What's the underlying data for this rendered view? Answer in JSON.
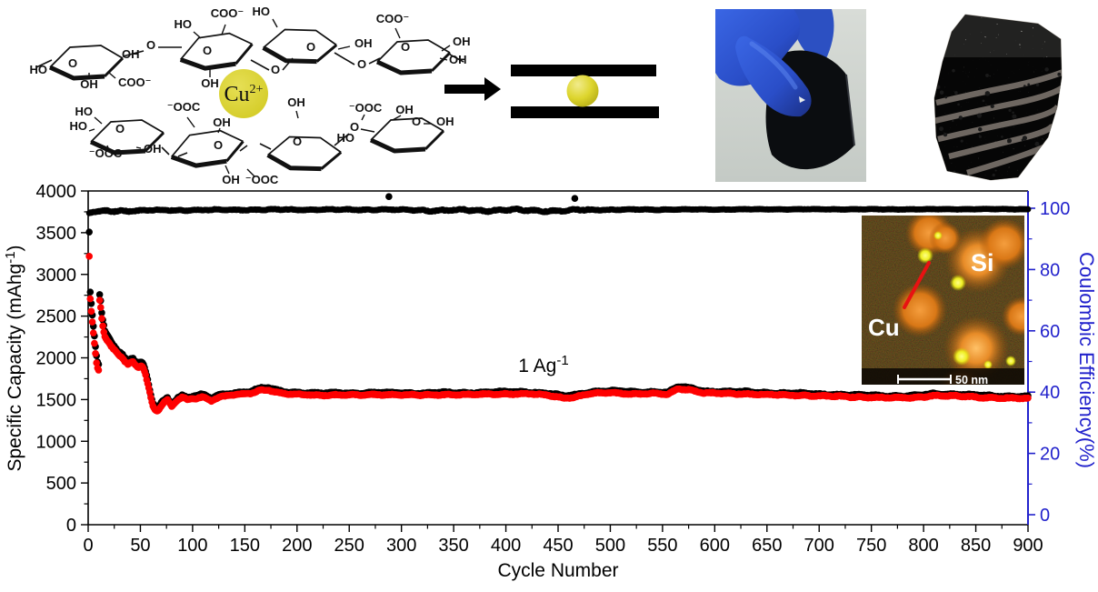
{
  "molecule": {
    "ion_base": "Cu",
    "ion_sup": "2+",
    "ion_color": "#d6ce28",
    "labels": {
      "oh": "OH",
      "ho": "HO",
      "coo": "COO⁻",
      "ooc": "⁻OOC",
      "o": "O"
    }
  },
  "inset": {
    "si_label": "Si",
    "cu_label": "Cu",
    "scale_label": "50 nm",
    "si_color": "#e07a18",
    "cu_color": "#f0ee20",
    "pointer_color": "#e81212"
  },
  "chart_data": {
    "type": "scatter",
    "xlabel": "Cycle Number",
    "ylabel_left_pre": "Specific Capacity (mAhg",
    "ylabel_left_sup": "-1",
    "ylabel_left_post": ")",
    "ylabel_right": "Coulombic Efficiency(%)",
    "annotation_pre": "1 Ag",
    "annotation_sup": "-1",
    "x_range": [
      0,
      900
    ],
    "x_ticks": [
      0,
      50,
      100,
      150,
      200,
      250,
      300,
      350,
      400,
      450,
      500,
      550,
      600,
      650,
      700,
      750,
      800,
      850,
      900
    ],
    "x_minor_step": 25,
    "y_left_range": [
      0,
      4000
    ],
    "y_left_ticks": [
      0,
      500,
      1000,
      1500,
      2000,
      2500,
      3000,
      3500,
      4000
    ],
    "y_left_minor_step": 250,
    "y_right_ticks": [
      0,
      20,
      40,
      60,
      80,
      100
    ],
    "y_right_minor_step": 10,
    "right_axis_color": "#2222cc",
    "grid": false,
    "legend": "none",
    "series": [
      {
        "name": "charge-capacity",
        "color": "#000000",
        "axis": "left",
        "anchors": [
          [
            1,
            3500
          ],
          [
            2,
            2780
          ],
          [
            3,
            2640
          ],
          [
            4,
            2510
          ],
          [
            5,
            2380
          ],
          [
            6,
            2260
          ],
          [
            7,
            2140
          ],
          [
            8,
            2030
          ],
          [
            9,
            1955
          ],
          [
            10,
            1935
          ],
          [
            11,
            2775
          ],
          [
            12,
            2695
          ],
          [
            13,
            2555
          ],
          [
            14,
            2462
          ],
          [
            15,
            2390
          ],
          [
            16,
            2328
          ],
          [
            17,
            2296
          ],
          [
            18,
            2274
          ],
          [
            20,
            2242
          ],
          [
            22,
            2190
          ],
          [
            25,
            2145
          ],
          [
            28,
            2102
          ],
          [
            30,
            2080
          ],
          [
            33,
            2038
          ],
          [
            35,
            1996
          ],
          [
            38,
            1955
          ],
          [
            40,
            1974
          ],
          [
            43,
            1992
          ],
          [
            45,
            1961
          ],
          [
            48,
            1930
          ],
          [
            50,
            1949
          ],
          [
            52,
            1938
          ],
          [
            54,
            1877
          ],
          [
            56,
            1776
          ],
          [
            58,
            1675
          ],
          [
            60,
            1554
          ],
          [
            62,
            1463
          ],
          [
            64,
            1422
          ],
          [
            66,
            1402
          ],
          [
            68,
            1421
          ],
          [
            70,
            1461
          ],
          [
            73,
            1500
          ],
          [
            76,
            1519
          ],
          [
            78,
            1479
          ],
          [
            80,
            1449
          ],
          [
            83,
            1489
          ],
          [
            86,
            1529
          ],
          [
            90,
            1549
          ],
          [
            95,
            1519
          ],
          [
            100,
            1538
          ],
          [
            110,
            1556
          ],
          [
            118,
            1516
          ],
          [
            125,
            1556
          ],
          [
            135,
            1575
          ],
          [
            145,
            1585
          ],
          [
            155,
            1595
          ],
          [
            165,
            1634
          ],
          [
            172,
            1644
          ],
          [
            180,
            1614
          ],
          [
            190,
            1594
          ],
          [
            200,
            1584
          ],
          [
            220,
            1574
          ],
          [
            240,
            1584
          ],
          [
            260,
            1574
          ],
          [
            280,
            1584
          ],
          [
            300,
            1584
          ],
          [
            320,
            1574
          ],
          [
            340,
            1584
          ],
          [
            360,
            1584
          ],
          [
            380,
            1584
          ],
          [
            400,
            1594
          ],
          [
            420,
            1594
          ],
          [
            440,
            1574
          ],
          [
            455,
            1544
          ],
          [
            465,
            1554
          ],
          [
            480,
            1594
          ],
          [
            500,
            1604
          ],
          [
            520,
            1594
          ],
          [
            540,
            1594
          ],
          [
            555,
            1584
          ],
          [
            565,
            1652
          ],
          [
            575,
            1642
          ],
          [
            590,
            1603
          ],
          [
            610,
            1593
          ],
          [
            630,
            1593
          ],
          [
            650,
            1583
          ],
          [
            670,
            1573
          ],
          [
            690,
            1573
          ],
          [
            710,
            1563
          ],
          [
            730,
            1553
          ],
          [
            750,
            1553
          ],
          [
            770,
            1543
          ],
          [
            790,
            1543
          ],
          [
            810,
            1573
          ],
          [
            830,
            1563
          ],
          [
            850,
            1553
          ],
          [
            870,
            1543
          ],
          [
            900,
            1533
          ]
        ]
      },
      {
        "name": "discharge-capacity",
        "color": "#fe0000",
        "axis": "left",
        "anchors": [
          [
            1,
            3220
          ],
          [
            2,
            2700
          ],
          [
            3,
            2560
          ],
          [
            4,
            2430
          ],
          [
            5,
            2300
          ],
          [
            6,
            2180
          ],
          [
            7,
            2060
          ],
          [
            8,
            1950
          ],
          [
            9,
            1880
          ],
          [
            10,
            1860
          ],
          [
            11,
            2700
          ],
          [
            12,
            2620
          ],
          [
            13,
            2480
          ],
          [
            14,
            2390
          ],
          [
            15,
            2320
          ],
          [
            16,
            2260
          ],
          [
            17,
            2230
          ],
          [
            18,
            2210
          ],
          [
            20,
            2180
          ],
          [
            22,
            2130
          ],
          [
            25,
            2090
          ],
          [
            28,
            2050
          ],
          [
            30,
            2030
          ],
          [
            33,
            1990
          ],
          [
            35,
            1950
          ],
          [
            38,
            1910
          ],
          [
            40,
            1930
          ],
          [
            43,
            1950
          ],
          [
            45,
            1920
          ],
          [
            48,
            1890
          ],
          [
            50,
            1910
          ],
          [
            52,
            1900
          ],
          [
            54,
            1840
          ],
          [
            56,
            1740
          ],
          [
            58,
            1640
          ],
          [
            60,
            1520
          ],
          [
            62,
            1430
          ],
          [
            64,
            1390
          ],
          [
            66,
            1370
          ],
          [
            68,
            1390
          ],
          [
            70,
            1430
          ],
          [
            73,
            1470
          ],
          [
            76,
            1490
          ],
          [
            78,
            1450
          ],
          [
            80,
            1420
          ],
          [
            83,
            1460
          ],
          [
            86,
            1500
          ],
          [
            90,
            1520
          ],
          [
            95,
            1490
          ],
          [
            100,
            1510
          ],
          [
            110,
            1530
          ],
          [
            118,
            1490
          ],
          [
            125,
            1530
          ],
          [
            135,
            1550
          ],
          [
            145,
            1560
          ],
          [
            155,
            1570
          ],
          [
            165,
            1610
          ],
          [
            172,
            1620
          ],
          [
            180,
            1590
          ],
          [
            190,
            1570
          ],
          [
            200,
            1560
          ],
          [
            220,
            1550
          ],
          [
            240,
            1560
          ],
          [
            260,
            1550
          ],
          [
            280,
            1560
          ],
          [
            300,
            1560
          ],
          [
            320,
            1550
          ],
          [
            340,
            1560
          ],
          [
            360,
            1560
          ],
          [
            380,
            1560
          ],
          [
            400,
            1570
          ],
          [
            420,
            1570
          ],
          [
            440,
            1550
          ],
          [
            455,
            1520
          ],
          [
            465,
            1530
          ],
          [
            480,
            1570
          ],
          [
            500,
            1580
          ],
          [
            520,
            1570
          ],
          [
            540,
            1570
          ],
          [
            555,
            1560
          ],
          [
            565,
            1630
          ],
          [
            575,
            1620
          ],
          [
            590,
            1580
          ],
          [
            610,
            1570
          ],
          [
            630,
            1570
          ],
          [
            650,
            1560
          ],
          [
            670,
            1550
          ],
          [
            690,
            1550
          ],
          [
            710,
            1540
          ],
          [
            730,
            1530
          ],
          [
            750,
            1530
          ],
          [
            770,
            1520
          ],
          [
            790,
            1520
          ],
          [
            810,
            1550
          ],
          [
            830,
            1540
          ],
          [
            850,
            1530
          ],
          [
            870,
            1520
          ],
          [
            900,
            1510
          ]
        ]
      },
      {
        "name": "coulombic-efficiency",
        "color": "#000000",
        "axis": "right",
        "anchors": [
          [
            1,
            98.3
          ],
          [
            3,
            98.6
          ],
          [
            8,
            98.8
          ],
          [
            15,
            99.0
          ],
          [
            30,
            99.15
          ],
          [
            60,
            99.3
          ],
          [
            100,
            99.4
          ],
          [
            150,
            99.5
          ],
          [
            200,
            99.55
          ],
          [
            280,
            99.55
          ],
          [
            310,
            99.45
          ],
          [
            340,
            99.2
          ],
          [
            360,
            99.45
          ],
          [
            385,
            99.25
          ],
          [
            410,
            99.4
          ],
          [
            435,
            99.25
          ],
          [
            455,
            99.1
          ],
          [
            470,
            99.45
          ],
          [
            490,
            99.5
          ],
          [
            520,
            99.55
          ],
          [
            560,
            99.6
          ],
          [
            600,
            99.6
          ],
          [
            650,
            99.65
          ],
          [
            700,
            99.65
          ],
          [
            750,
            99.65
          ],
          [
            800,
            99.65
          ],
          [
            850,
            99.7
          ],
          [
            900,
            99.7
          ]
        ],
        "outliers": [
          [
            288,
            103.8
          ],
          [
            466,
            103.2
          ]
        ]
      }
    ]
  }
}
